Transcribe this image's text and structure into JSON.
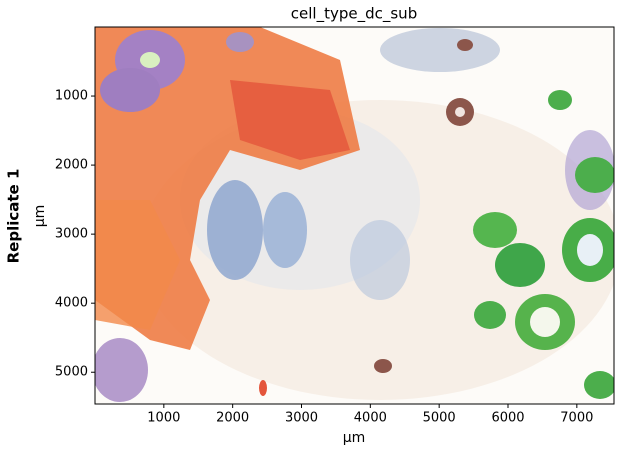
{
  "chart_data": {
    "type": "scatter",
    "title": "cell_type_dc_sub",
    "row_label": "Replicate 1",
    "x_label": "µm",
    "y_label": "µm",
    "xlim": [
      0,
      7540
    ],
    "ylim": [
      5460,
      0
    ],
    "xticks": [
      1000,
      2000,
      3000,
      4000,
      5000,
      6000,
      7000
    ],
    "yticks": [
      1000,
      2000,
      3000,
      4000,
      5000
    ]
  }
}
